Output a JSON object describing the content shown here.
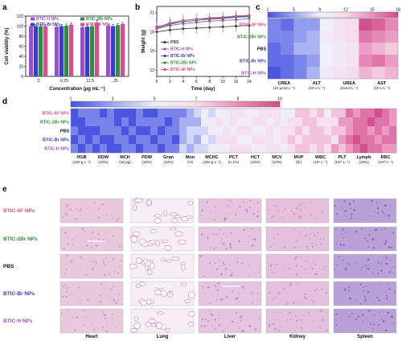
{
  "panels": {
    "a": {
      "letter": "a"
    },
    "b": {
      "letter": "b"
    },
    "c": {
      "letter": "c"
    },
    "d": {
      "letter": "d"
    },
    "e": {
      "letter": "e"
    }
  },
  "chart_data": [
    {
      "type": "bar",
      "panel": "a",
      "ylabel": "Cell viability (%)",
      "xlabel": "Concentration (μg mL⁻¹)",
      "categories": [
        "0",
        "6.25",
        "12.5",
        "25"
      ],
      "ylim": [
        0,
        120
      ],
      "yticks": [
        "0",
        "20",
        "40",
        "60",
        "80",
        "100",
        "120"
      ],
      "series": [
        {
          "name": "BTIC-H NPs",
          "color": "#9b4fd0",
          "values": [
            100,
            99,
            98,
            101
          ]
        },
        {
          "name": "BTIC-Br NPs",
          "color": "#3a3ad6",
          "values": [
            100,
            100,
            99,
            100
          ]
        },
        {
          "name": "BTIC-2Br NPs",
          "color": "#2f8f3a",
          "values": [
            100,
            101,
            100,
            102
          ]
        },
        {
          "name": "BTIC-4F NPs",
          "color": "#d64f8c",
          "values": [
            100,
            103,
            107,
            104
          ]
        }
      ],
      "errors": [
        3,
        3,
        4,
        3
      ]
    },
    {
      "type": "line",
      "panel": "b",
      "ylabel": "Weight (g)",
      "xlabel": "Time (day)",
      "x": [
        0,
        2,
        4,
        6,
        8,
        10,
        12,
        14
      ],
      "ylim": [
        11,
        22
      ],
      "yticks": [
        "12",
        "15",
        "18",
        "21"
      ],
      "xticks": [
        "0",
        "2",
        "4",
        "6",
        "8",
        "10",
        "12",
        "14"
      ],
      "series": [
        {
          "name": "PBS",
          "color": "#444444",
          "values": [
            18.0,
            18.3,
            18.5,
            18.6,
            18.7,
            18.8,
            18.9,
            19.0
          ]
        },
        {
          "name": "BTIC-H NPs",
          "color": "#9b4fd0",
          "values": [
            18.5,
            19.0,
            19.3,
            19.5,
            19.7,
            19.8,
            19.9,
            20.1
          ]
        },
        {
          "name": "BTIC-Br NPs",
          "color": "#3a3ad6",
          "values": [
            18.8,
            19.3,
            19.8,
            20.0,
            20.1,
            20.2,
            20.4,
            20.5
          ]
        },
        {
          "name": "BTIC-2Br NPs",
          "color": "#2f8f3a",
          "values": [
            18.6,
            19.2,
            19.6,
            19.8,
            20.0,
            20.1,
            20.3,
            20.4
          ]
        },
        {
          "name": "BTIC-4F NPs",
          "color": "#d64f8c",
          "values": [
            18.7,
            19.4,
            19.8,
            20.0,
            20.2,
            20.3,
            20.5,
            20.6
          ]
        }
      ]
    },
    {
      "type": "heatmap",
      "panel": "c",
      "colorbar_ticks": [
        "1",
        "5",
        "8",
        "12",
        "15",
        "18"
      ],
      "rows": [
        "BTIC-4F NPs",
        "BTIC-2Br NPs",
        "PBS",
        "BTIC-Br NPs",
        "BTIC-H NPs"
      ],
      "row_colors": [
        "#d64f8c",
        "#2f8f3a",
        "#111111",
        "#3a3ad6",
        "#9b4fd0"
      ],
      "columns": [
        {
          "name": "CREA",
          "unit": "(10 μmol L⁻¹)"
        },
        {
          "name": "ALT",
          "unit": "(10 U L⁻¹)"
        },
        {
          "name": "UREA",
          "unit": "(mmol L⁻¹)"
        },
        {
          "name": "AST",
          "unit": "(10 U L⁻¹)"
        }
      ],
      "values": [
        [
          3,
          2,
          4,
          4,
          8,
          10,
          11,
          18,
          17,
          15
        ],
        [
          3,
          3,
          4,
          5,
          9,
          10,
          11,
          16,
          15,
          14
        ],
        [
          2,
          3,
          5,
          5,
          8,
          9,
          10,
          14,
          13,
          12
        ],
        [
          2,
          2,
          3,
          4,
          8,
          9,
          10,
          15,
          16,
          14
        ],
        [
          1,
          2,
          3,
          5,
          9,
          10,
          11,
          13,
          12,
          13
        ]
      ]
    },
    {
      "type": "heatmap",
      "panel": "d",
      "colorbar_ticks": [
        "1",
        "3",
        "5",
        "7",
        "8",
        "10"
      ],
      "rows": [
        "BTIC-4F NPs",
        "BTIC-2Br NPs",
        "PBS",
        "BTIC-Br NPs",
        "BTIC-H NPs"
      ],
      "row_colors": [
        "#d64f8c",
        "#2f8f3a",
        "#111111",
        "#3a3ad6",
        "#9b4fd0"
      ],
      "columns": [
        {
          "name": "HGB",
          "unit": "(100 g L⁻¹)"
        },
        {
          "name": "RDW",
          "unit": "(10%)"
        },
        {
          "name": "MCH",
          "unit": "(10 pg)"
        },
        {
          "name": "PDW",
          "unit": "(10%)"
        },
        {
          "name": "Gran",
          "unit": "(10%)"
        },
        {
          "name": "Mon",
          "unit": "(%)"
        },
        {
          "name": "MCHC",
          "unit": "(100 g L⁻¹)"
        },
        {
          "name": "PCT",
          "unit": "(0.1%)"
        },
        {
          "name": "HCT",
          "unit": "(10%)"
        },
        {
          "name": "MCV",
          "unit": "(10%)"
        },
        {
          "name": "MVP",
          "unit": "(fL)"
        },
        {
          "name": "WBC",
          "unit": "(10⁹ L⁻¹)"
        },
        {
          "name": "PLT",
          "unit": "(10¹¹ L⁻¹)"
        },
        {
          "name": "Lymph",
          "unit": "(10%)"
        },
        {
          "name": "RBC",
          "unit": "(10¹² L⁻¹)"
        }
      ],
      "values": [
        [
          1,
          2,
          2,
          2,
          1,
          2,
          1,
          1,
          1,
          2,
          1,
          1,
          2,
          2,
          2,
          2,
          3,
          4,
          5,
          4,
          5,
          5,
          6,
          6,
          5,
          5,
          6,
          6,
          6,
          5,
          5,
          7,
          7,
          6,
          7,
          5,
          7,
          7,
          9,
          8,
          9,
          9,
          10,
          9,
          8
        ],
        [
          1,
          1,
          2,
          2,
          2,
          2,
          1,
          2,
          1,
          2,
          2,
          2,
          2,
          1,
          2,
          3,
          3,
          3,
          5,
          5,
          6,
          5,
          6,
          5,
          5,
          6,
          6,
          5,
          6,
          5,
          6,
          6,
          7,
          7,
          6,
          6,
          6,
          8,
          8,
          9,
          9,
          10,
          9,
          9,
          8
        ],
        [
          2,
          1,
          1,
          1,
          2,
          2,
          2,
          1,
          2,
          1,
          1,
          2,
          1,
          2,
          2,
          3,
          4,
          4,
          4,
          5,
          5,
          6,
          5,
          6,
          6,
          5,
          5,
          6,
          5,
          6,
          6,
          7,
          6,
          7,
          7,
          6,
          7,
          7,
          8,
          9,
          9,
          8,
          9,
          8,
          9
        ],
        [
          1,
          2,
          1,
          2,
          1,
          1,
          2,
          2,
          1,
          2,
          2,
          1,
          2,
          2,
          1,
          3,
          4,
          3,
          5,
          4,
          6,
          6,
          6,
          5,
          5,
          6,
          6,
          6,
          5,
          6,
          7,
          6,
          7,
          7,
          7,
          7,
          6,
          8,
          9,
          10,
          9,
          9,
          8,
          9,
          9
        ],
        [
          2,
          1,
          2,
          1,
          2,
          1,
          1,
          2,
          2,
          1,
          2,
          2,
          1,
          2,
          2,
          4,
          3,
          4,
          4,
          5,
          5,
          5,
          6,
          6,
          6,
          5,
          5,
          6,
          6,
          5,
          6,
          7,
          7,
          6,
          7,
          6,
          8,
          7,
          8,
          9,
          10,
          9,
          9,
          8,
          8
        ]
      ]
    }
  ],
  "histology": {
    "groups": [
      {
        "label": "BTIC-4F NPs",
        "color": "#d64f8c"
      },
      {
        "label": "BTIC-2Br NPs",
        "color": "#2f8f3a"
      },
      {
        "label": "PBS",
        "color": "#111111"
      },
      {
        "label": "BTIC-Br NPs",
        "color": "#3a3ad6"
      },
      {
        "label": "BTIC-H NPs",
        "color": "#9b4fd0"
      }
    ],
    "organs": [
      "Heart",
      "Lung",
      "Liver",
      "Kidney",
      "Spleen"
    ]
  }
}
